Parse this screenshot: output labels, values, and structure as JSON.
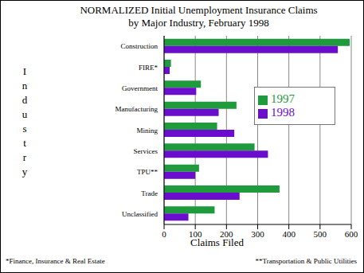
{
  "chart_data": {
    "type": "bar",
    "orientation": "horizontal",
    "title": "NORMALIZED Initial Unemployment Insurance Claims",
    "subtitle": "by Major Industry, February 1998",
    "x_label": "Claims Filed",
    "y_label": "Industry",
    "footnotes": [
      "*Finance, Insurance & Real Estate",
      "**Transportation & Public Utilities"
    ],
    "categories": [
      "Construction",
      "FIRE*",
      "Government",
      "Manufacturing",
      "Mining",
      "Services",
      "TPU**",
      "Trade",
      "Unclassified"
    ],
    "series": [
      {
        "name": "1997",
        "color": "#1f9a3c",
        "values": [
          595,
          22,
          118,
          232,
          170,
          290,
          112,
          370,
          162
        ]
      },
      {
        "name": "1998",
        "color": "#6a0dcc",
        "values": [
          557,
          18,
          103,
          175,
          225,
          333,
          100,
          242,
          78
        ]
      }
    ],
    "xlim": [
      0,
      600
    ],
    "xticks": [
      0,
      100,
      200,
      300,
      400,
      500,
      600
    ],
    "grid": true,
    "legend": "right"
  }
}
